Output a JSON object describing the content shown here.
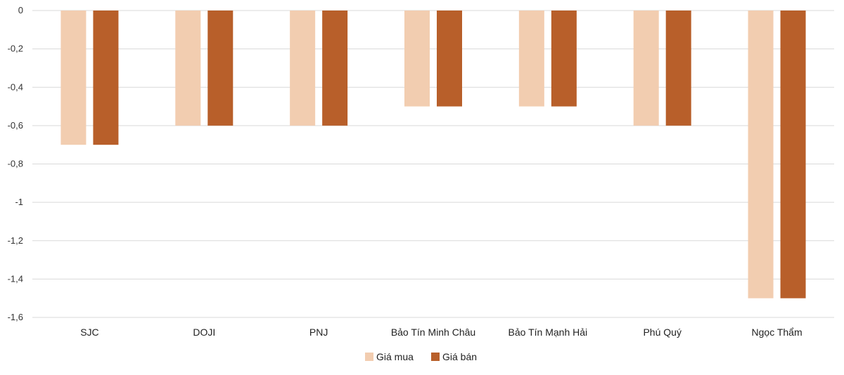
{
  "chart_data": {
    "type": "bar",
    "title": "",
    "xlabel": "",
    "ylabel": "",
    "categories": [
      "SJC",
      "DOJI",
      "PNJ",
      "Bảo Tín Minh Châu",
      "Bảo Tín Mạnh Hải",
      "Phú Quý",
      "Ngọc Thẩm"
    ],
    "series": [
      {
        "name": "Giá mua",
        "color": "#F2CDB0",
        "values": [
          -0.7,
          -0.6,
          -0.6,
          -0.5,
          -0.5,
          -0.6,
          -1.5
        ]
      },
      {
        "name": "Giá bán",
        "color": "#B85F2A",
        "values": [
          -0.7,
          -0.6,
          -0.6,
          -0.5,
          -0.5,
          -0.6,
          -1.5
        ]
      }
    ],
    "ylim": [
      -1.6,
      0
    ],
    "yticks": [
      0,
      -0.2,
      -0.4,
      -0.6,
      -0.8,
      -1,
      -1.2,
      -1.4,
      -1.6
    ],
    "ytick_labels": [
      "0",
      "-0,2",
      "-0,4",
      "-0,6",
      "-0,8",
      "-1",
      "-1,2",
      "-1,4",
      "-1,6"
    ],
    "grid": true,
    "gridline_color": "#D9D9D9",
    "legend_position": "bottom-center"
  }
}
